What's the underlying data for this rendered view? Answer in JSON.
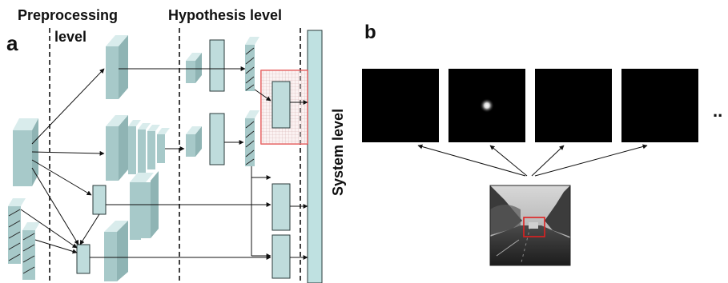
{
  "panel_a": {
    "label": "a",
    "stage_preprocessing_line1": "Preprocessing",
    "stage_preprocessing_line2": "level",
    "stage_hypothesis": "Hypothesis level",
    "stage_system": "System level"
  },
  "panel_b": {
    "label": "b",
    "ellipsis": ".."
  },
  "colors": {
    "block": "#a7c9c9",
    "highlight": "#e03c3c",
    "map_background": "#000000"
  }
}
